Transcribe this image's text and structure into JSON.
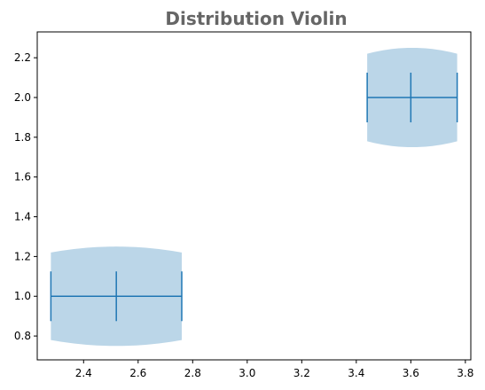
{
  "chart_data": {
    "type": "violin",
    "title": "Distribution Violin",
    "xlabel": "",
    "ylabel": "",
    "xlim": [
      2.23,
      3.82
    ],
    "ylim": [
      0.68,
      2.33
    ],
    "x_ticks": [
      2.4,
      2.6,
      2.8,
      3.0,
      3.2,
      3.4,
      3.6,
      3.8
    ],
    "x_tick_labels": [
      "2.4",
      "2.6",
      "2.8",
      "3.0",
      "3.2",
      "3.4",
      "3.6",
      "3.8"
    ],
    "y_ticks": [
      0.8,
      1.0,
      1.2,
      1.4,
      1.6,
      1.8,
      2.0,
      2.2
    ],
    "y_tick_labels": [
      "0.8",
      "1.0",
      "1.2",
      "1.4",
      "1.6",
      "1.8",
      "2.0",
      "2.2"
    ],
    "grid": false,
    "violins": [
      {
        "position": 1.0,
        "x_min": 2.28,
        "x_median": 2.52,
        "x_max": 2.76,
        "body_x_range": [
          2.28,
          2.76
        ],
        "body_half_width_max": 0.25,
        "body_half_width_edge": 0.22
      },
      {
        "position": 2.0,
        "x_min": 3.44,
        "x_median": 3.6,
        "x_max": 3.77,
        "body_x_range": [
          3.44,
          3.77
        ],
        "body_half_width_max": 0.25,
        "body_half_width_edge": 0.22
      }
    ],
    "colors": {
      "body": "#1f77b4",
      "lines": "#1f77b4",
      "title": "#666666"
    }
  }
}
